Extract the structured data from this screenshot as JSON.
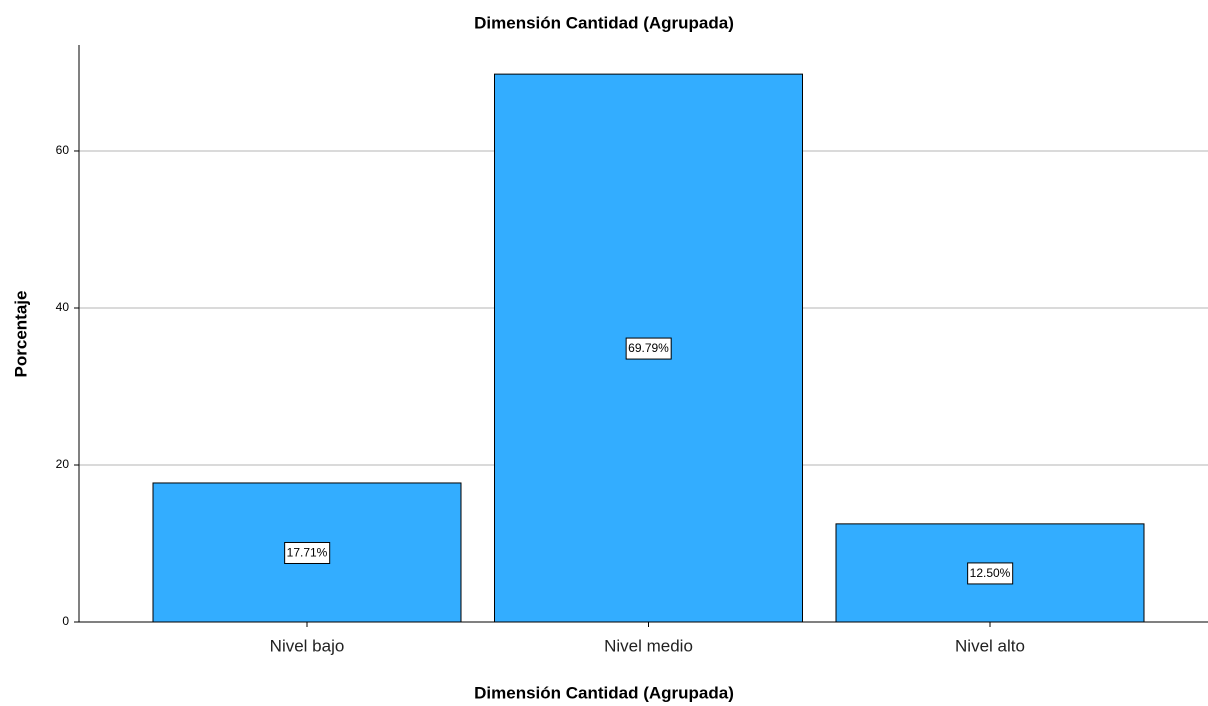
{
  "chart_data": {
    "type": "bar",
    "title": "Dimensión Cantidad (Agrupada)",
    "x_label": "Dimensión Cantidad (Agrupada)",
    "y_label": "Porcentaje",
    "categories": [
      "Nivel bajo",
      "Nivel medio",
      "Nivel alto"
    ],
    "values": [
      17.71,
      69.79,
      12.5
    ],
    "value_labels": [
      "17.71%",
      "69.79%",
      "12.50%"
    ],
    "color": "#33adff",
    "ylim": [
      0,
      73.5
    ],
    "yticks": [
      0,
      20,
      40,
      60
    ],
    "grid": true
  }
}
